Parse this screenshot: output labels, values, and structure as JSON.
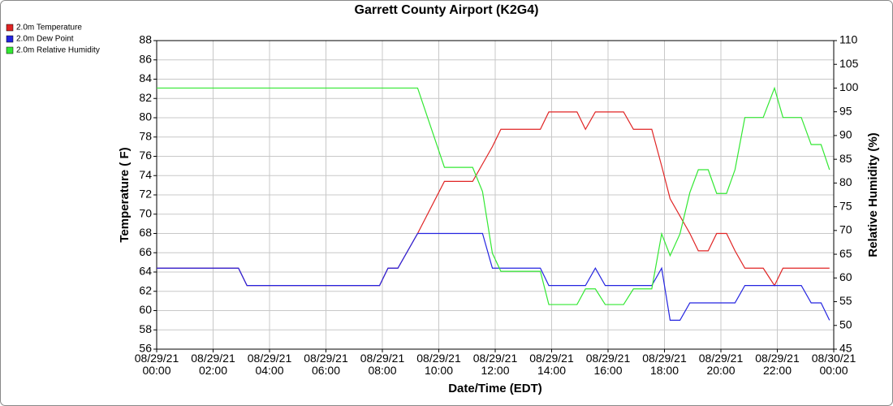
{
  "chart_data": {
    "type": "line",
    "title": "Garrett County Airport (K2G4)",
    "x_label": "Date/Time (EDT)",
    "y_label": "Temperature ( F)",
    "y2_label": "Relative Humidity (%)",
    "x": [
      "08/29/21 00:00",
      "08/29/21 02:54",
      "08/29/21 03:12",
      "08/29/21 07:54",
      "08/29/21 08:12",
      "08/29/21 08:33",
      "08/29/21 09:15",
      "08/29/21 10:12",
      "08/29/21 11:12",
      "08/29/21 11:33",
      "08/29/21 11:54",
      "08/29/21 12:12",
      "08/29/21 13:36",
      "08/29/21 13:54",
      "08/29/21 14:54",
      "08/29/21 15:12",
      "08/29/21 15:33",
      "08/29/21 15:54",
      "08/29/21 16:33",
      "08/29/21 16:54",
      "08/29/21 17:33",
      "08/29/21 17:54",
      "08/29/21 18:12",
      "08/29/21 18:33",
      "08/29/21 18:54",
      "08/29/21 19:12",
      "08/29/21 19:33",
      "08/29/21 19:51",
      "08/29/21 20:12",
      "08/29/21 20:30",
      "08/29/21 20:51",
      "08/29/21 21:30",
      "08/29/21 21:54",
      "08/29/21 22:12",
      "08/29/21 22:51",
      "08/29/21 23:12",
      "08/29/21 23:33",
      "08/29/21 23:51"
    ],
    "series": [
      {
        "name": "2.0m Temperature",
        "color": "#e02424",
        "axis": "y",
        "values": [
          64.4,
          64.4,
          62.6,
          62.6,
          64.4,
          64.4,
          68,
          73.4,
          73.4,
          75.2,
          77,
          78.8,
          78.8,
          80.6,
          80.6,
          78.8,
          80.6,
          80.6,
          80.6,
          78.8,
          78.8,
          75,
          71.6,
          69.8,
          68,
          66.2,
          66.2,
          68,
          68,
          66.2,
          64.4,
          64.4,
          62.6,
          64.4,
          64.4,
          64.4,
          64.4,
          64.4
        ]
      },
      {
        "name": "2.0m Dew Point",
        "color": "#2424e0",
        "axis": "y",
        "values": [
          64.4,
          64.4,
          62.6,
          62.6,
          64.4,
          64.4,
          68,
          68,
          68,
          68,
          64.4,
          64.4,
          64.4,
          62.6,
          62.6,
          62.6,
          64.4,
          62.6,
          62.6,
          62.6,
          62.6,
          64.4,
          59,
          59,
          60.8,
          60.8,
          60.8,
          60.8,
          60.8,
          60.8,
          62.6,
          62.6,
          62.6,
          62.6,
          62.6,
          60.8,
          60.8,
          59
        ]
      },
      {
        "name": "2.0m Relative Humidity",
        "color": "#33e833",
        "axis": "y2",
        "values": [
          100,
          100,
          100,
          100,
          100,
          100,
          100,
          83.3,
          83.3,
          78.2,
          65.2,
          61.4,
          61.4,
          54.4,
          54.4,
          57.7,
          57.7,
          54.4,
          54.4,
          57.7,
          57.7,
          69.3,
          64.7,
          69.3,
          78,
          82.8,
          82.8,
          77.8,
          77.8,
          82.8,
          93.8,
          93.8,
          100,
          93.8,
          93.8,
          88.1,
          88.1,
          82.8
        ]
      }
    ],
    "xlim": [
      "08/29/21 00:00",
      "08/30/21 00:00"
    ],
    "xticks": [
      "08/29/21 00:00",
      "08/29/21 02:00",
      "08/29/21 04:00",
      "08/29/21 06:00",
      "08/29/21 08:00",
      "08/29/21 10:00",
      "08/29/21 12:00",
      "08/29/21 14:00",
      "08/29/21 16:00",
      "08/29/21 18:00",
      "08/29/21 20:00",
      "08/29/21 22:00",
      "08/30/21 00:00"
    ],
    "ylim": [
      56,
      88
    ],
    "yticks": [
      56,
      58,
      60,
      62,
      64,
      66,
      68,
      70,
      72,
      74,
      76,
      78,
      80,
      82,
      84,
      86,
      88
    ],
    "y2lim": [
      45,
      110
    ],
    "y2ticks": [
      45,
      50,
      55,
      60,
      65,
      70,
      75,
      80,
      85,
      90,
      95,
      100,
      105,
      110
    ],
    "grid": true,
    "legend": "top-left"
  }
}
